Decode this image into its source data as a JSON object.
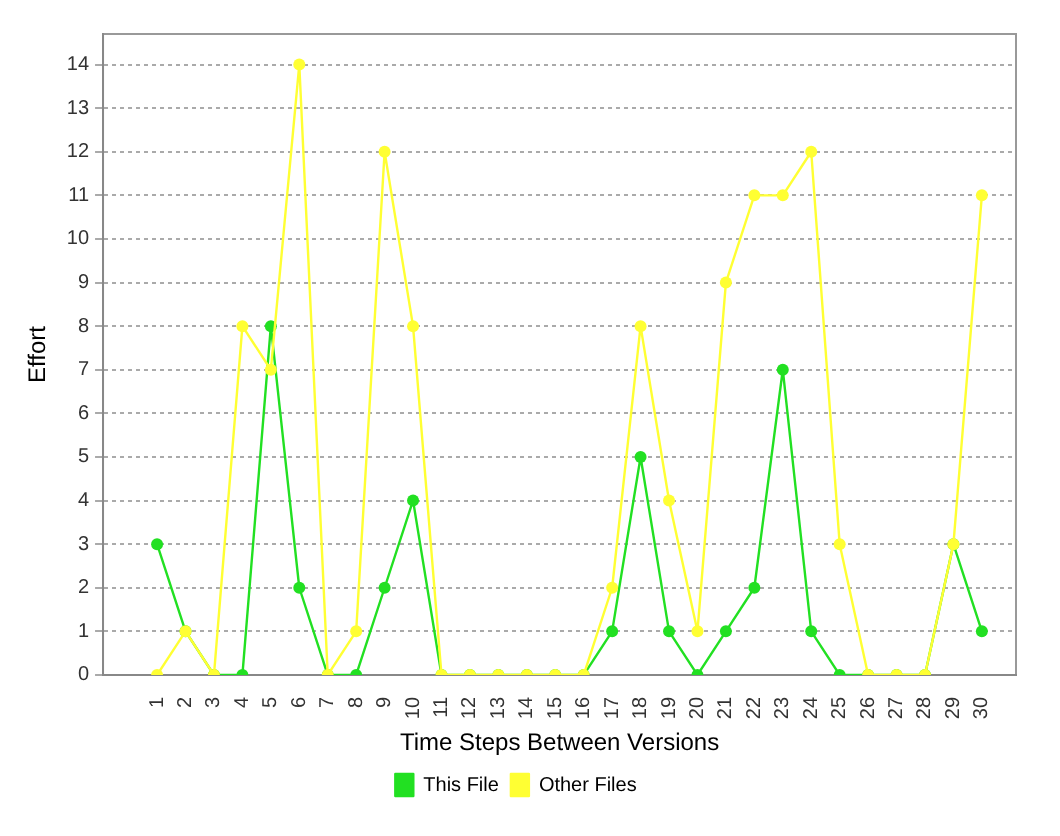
{
  "chart_data": {
    "type": "line",
    "xlabel": "Time Steps Between Versions",
    "ylabel": "Effort",
    "categories": [
      "1",
      "2",
      "3",
      "4",
      "5",
      "6",
      "7",
      "8",
      "9",
      "10",
      "11",
      "12",
      "13",
      "14",
      "15",
      "16",
      "17",
      "18",
      "19",
      "20",
      "21",
      "22",
      "23",
      "24",
      "25",
      "26",
      "27",
      "28",
      "29",
      "30"
    ],
    "series": [
      {
        "name": "This File",
        "color": "#22e022",
        "values": [
          3,
          1,
          0,
          0,
          8,
          2,
          0,
          0,
          2,
          4,
          0,
          0,
          0,
          0,
          0,
          0,
          1,
          5,
          1,
          0,
          1,
          2,
          7,
          1,
          0,
          0,
          0,
          0,
          3,
          1
        ]
      },
      {
        "name": "Other Files",
        "color": "#ffff33",
        "values": [
          0,
          1,
          0,
          8,
          7,
          14,
          0,
          1,
          12,
          8,
          0,
          0,
          0,
          0,
          0,
          0,
          2,
          8,
          4,
          1,
          9,
          11,
          11,
          12,
          3,
          0,
          0,
          0,
          3,
          11
        ]
      }
    ],
    "ylim": [
      0,
      14.7
    ],
    "yticks": [
      0,
      1,
      2,
      3,
      4,
      5,
      6,
      7,
      8,
      9,
      10,
      11,
      12,
      13,
      14
    ],
    "grid": "y",
    "legend": "bottom",
    "marker": "circle",
    "line_style": "solid"
  }
}
